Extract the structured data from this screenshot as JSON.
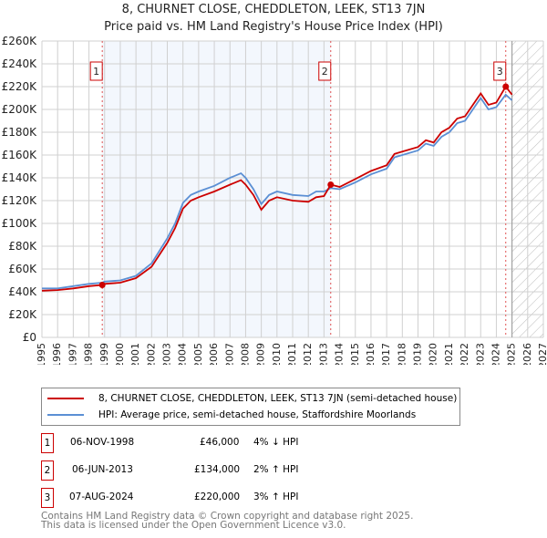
{
  "header": {
    "title": "8, CHURNET CLOSE, CHEDDLETON, LEEK, ST13 7JN",
    "subtitle": "Price paid vs. HM Land Registry's House Price Index (HPI)"
  },
  "chart_data": {
    "type": "line",
    "title": "8, CHURNET CLOSE, CHEDDLETON, LEEK, ST13 7JN",
    "subtitle": "Price paid vs. HM Land Registry's House Price Index (HPI)",
    "xlim": [
      1995,
      2027
    ],
    "ylim": [
      0,
      260000
    ],
    "x_ticks": [
      "1995",
      "1996",
      "1997",
      "1998",
      "1999",
      "2000",
      "2001",
      "2002",
      "2003",
      "2004",
      "2005",
      "2006",
      "2007",
      "2008",
      "2009",
      "2010",
      "2011",
      "2012",
      "2013",
      "2014",
      "2015",
      "2016",
      "2017",
      "2018",
      "2019",
      "2020",
      "2021",
      "2022",
      "2023",
      "2024",
      "2025",
      "2026",
      "2027"
    ],
    "y_ticks": [
      "£0",
      "£20K",
      "£40K",
      "£60K",
      "£80K",
      "£100K",
      "£120K",
      "£140K",
      "£160K",
      "£180K",
      "£200K",
      "£220K",
      "£240K",
      "£260K"
    ],
    "x": [
      1995,
      1996,
      1997,
      1998,
      1998.85,
      1999,
      2000,
      2001,
      2002,
      2003,
      2003.5,
      2004,
      2004.5,
      2005,
      2006,
      2007,
      2007.7,
      2008,
      2008.5,
      2009,
      2009.5,
      2010,
      2011,
      2012,
      2012.5,
      2013,
      2013.43,
      2014,
      2015,
      2016,
      2017,
      2017.5,
      2018,
      2019,
      2019.5,
      2020,
      2020.5,
      2021,
      2021.5,
      2022,
      2022.5,
      2023,
      2023.5,
      2024,
      2024.6,
      2025
    ],
    "series": [
      {
        "name": "8, CHURNET CLOSE, CHEDDLETON, LEEK, ST13 7JN (semi-detached house)",
        "color": "#cc0000",
        "values": [
          41000,
          41500,
          43000,
          45000,
          46000,
          47000,
          48000,
          52000,
          62000,
          83000,
          96000,
          113000,
          120000,
          123000,
          128000,
          134000,
          138000,
          134000,
          125000,
          112000,
          120000,
          123000,
          120000,
          119000,
          123000,
          124000,
          134000,
          132000,
          139000,
          146000,
          151000,
          161000,
          163000,
          167000,
          173000,
          171000,
          180000,
          184000,
          192000,
          194000,
          204000,
          214000,
          204000,
          206000,
          220000,
          213000
        ]
      },
      {
        "name": "HPI: Average price, semi-detached house, Staffordshire Moorlands",
        "color": "#5b8fd4",
        "values": [
          43000,
          43000,
          45000,
          47000,
          48000,
          49000,
          50000,
          54000,
          65000,
          87000,
          100000,
          118000,
          125000,
          128000,
          133000,
          140000,
          144000,
          140000,
          130000,
          117000,
          125000,
          128000,
          125000,
          124000,
          128000,
          128000,
          131000,
          130000,
          136000,
          143000,
          148000,
          158000,
          160000,
          164000,
          170000,
          168000,
          176000,
          180000,
          188000,
          190000,
          200000,
          210000,
          200000,
          202000,
          213000,
          208000
        ]
      }
    ],
    "sales": [
      {
        "label": "1",
        "x": 1998.85,
        "y": 46000
      },
      {
        "label": "2",
        "x": 2013.43,
        "y": 134000
      },
      {
        "label": "3",
        "x": 2024.6,
        "y": 220000
      }
    ],
    "shaded_range": [
      1998.85,
      2013.43
    ],
    "hatched_from": 2025.0,
    "grid": true
  },
  "legend": {
    "red": "8, CHURNET CLOSE, CHEDDLETON, LEEK, ST13 7JN (semi-detached house)",
    "blue": "HPI: Average price, semi-detached house, Staffordshire Moorlands"
  },
  "transactions": [
    {
      "num": "1",
      "date": "06-NOV-1998",
      "price": "£46,000",
      "hpi": "4% ↓ HPI"
    },
    {
      "num": "2",
      "date": "06-JUN-2013",
      "price": "£134,000",
      "hpi": "2% ↑ HPI"
    },
    {
      "num": "3",
      "date": "07-AUG-2024",
      "price": "£220,000",
      "hpi": "3% ↑ HPI"
    }
  ],
  "footer": {
    "line1": "Contains HM Land Registry data © Crown copyright and database right 2025.",
    "line2": "This data is licensed under the Open Government Licence v3.0."
  }
}
